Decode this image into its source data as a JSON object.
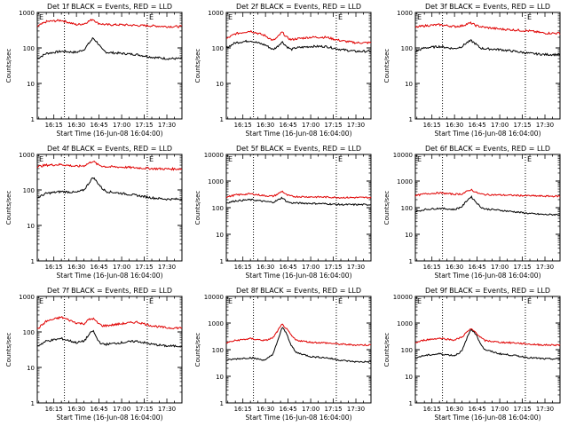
{
  "figure": {
    "y_tick_labels": [
      "1",
      "10",
      "100",
      "1000",
      "10000"
    ],
    "x_tick_labels": [
      "16:15",
      "16:30",
      "16:45",
      "17:00",
      "17:15",
      "17:30"
    ],
    "ylabel": "Counts/sec",
    "xlabel": "Start Time (16-Jun-08 16:04:00)",
    "corner_marks": [
      "E",
      "E"
    ]
  },
  "colors": {
    "events": "#000000",
    "lld": "#e00000",
    "axes": "#000000"
  },
  "chart_data": [
    {
      "type": "line",
      "title": "Det 1f BLACK = Events, RED = LLD",
      "xlabel": "Start Time (16-Jun-08 16:04:00)",
      "ylabel": "Counts/sec",
      "ylog": true,
      "ylim": [
        1,
        1000
      ],
      "x_tick_labels": [
        "16:15",
        "16:30",
        "16:45",
        "17:00",
        "17:15",
        "17:30"
      ],
      "y_tick_labels": [
        "1",
        "10",
        "100",
        "1000"
      ],
      "vlines": [
        "16:22",
        "17:17"
      ],
      "x": [
        "16:04",
        "16:10",
        "16:20",
        "16:30",
        "16:35",
        "16:38",
        "16:41",
        "16:44",
        "16:47",
        "16:50",
        "17:00",
        "17:10",
        "17:20",
        "17:30",
        "17:40"
      ],
      "series": [
        {
          "name": "Events",
          "values": [
            50,
            70,
            80,
            75,
            90,
            130,
            190,
            140,
            90,
            75,
            70,
            65,
            55,
            50,
            50
          ]
        },
        {
          "name": "LLD",
          "values": [
            400,
            550,
            600,
            450,
            480,
            560,
            650,
            500,
            470,
            450,
            450,
            430,
            420,
            400,
            400
          ]
        }
      ]
    },
    {
      "type": "line",
      "title": "Det 2f BLACK = Events, RED = LLD",
      "xlabel": "Start Time (16-Jun-08 16:04:00)",
      "ylabel": "Counts/sec",
      "ylog": true,
      "ylim": [
        1,
        1000
      ],
      "x_tick_labels": [
        "16:15",
        "16:30",
        "16:45",
        "17:00",
        "17:15",
        "17:30"
      ],
      "y_tick_labels": [
        "1",
        "10",
        "100",
        "1000"
      ],
      "vlines": [
        "16:22",
        "17:17"
      ],
      "x": [
        "16:04",
        "16:10",
        "16:20",
        "16:30",
        "16:35",
        "16:38",
        "16:41",
        "16:44",
        "16:47",
        "16:50",
        "17:00",
        "17:10",
        "17:20",
        "17:30",
        "17:40"
      ],
      "series": [
        {
          "name": "Events",
          "values": [
            100,
            140,
            160,
            120,
            90,
            110,
            150,
            110,
            90,
            100,
            110,
            110,
            90,
            80,
            80
          ]
        },
        {
          "name": "LLD",
          "values": [
            180,
            250,
            300,
            220,
            160,
            200,
            280,
            200,
            170,
            180,
            200,
            200,
            160,
            140,
            140
          ]
        }
      ]
    },
    {
      "type": "line",
      "title": "Det 3f BLACK = Events, RED = LLD",
      "xlabel": "Start Time (16-Jun-08 16:04:00)",
      "ylabel": "Counts/sec",
      "ylog": true,
      "ylim": [
        1,
        1000
      ],
      "x_tick_labels": [
        "16:15",
        "16:30",
        "16:45",
        "17:00",
        "17:15",
        "17:30"
      ],
      "y_tick_labels": [
        "1",
        "10",
        "100",
        "1000"
      ],
      "vlines": [
        "16:22",
        "17:17"
      ],
      "x": [
        "16:04",
        "16:10",
        "16:20",
        "16:30",
        "16:35",
        "16:38",
        "16:41",
        "16:44",
        "16:47",
        "16:50",
        "17:00",
        "17:10",
        "17:20",
        "17:30",
        "17:40"
      ],
      "series": [
        {
          "name": "Events",
          "values": [
            80,
            100,
            110,
            95,
            110,
            140,
            160,
            130,
            100,
            95,
            90,
            80,
            70,
            65,
            65
          ]
        },
        {
          "name": "LLD",
          "values": [
            380,
            420,
            450,
            400,
            420,
            470,
            500,
            430,
            400,
            380,
            340,
            320,
            300,
            260,
            260
          ]
        }
      ]
    },
    {
      "type": "line",
      "title": "Det 4f BLACK = Events, RED = LLD",
      "xlabel": "Start Time (16-Jun-08 16:04:00)",
      "ylabel": "Counts/sec",
      "ylog": true,
      "ylim": [
        1,
        1000
      ],
      "x_tick_labels": [
        "16:15",
        "16:30",
        "16:45",
        "17:00",
        "17:15",
        "17:30"
      ],
      "y_tick_labels": [
        "1",
        "10",
        "100",
        "1000"
      ],
      "vlines": [
        "16:22",
        "17:17"
      ],
      "x": [
        "16:04",
        "16:10",
        "16:20",
        "16:30",
        "16:35",
        "16:38",
        "16:41",
        "16:44",
        "16:47",
        "16:50",
        "17:00",
        "17:10",
        "17:20",
        "17:30",
        "17:40"
      ],
      "series": [
        {
          "name": "Events",
          "values": [
            60,
            80,
            90,
            85,
            100,
            150,
            230,
            160,
            110,
            90,
            80,
            70,
            60,
            55,
            55
          ]
        },
        {
          "name": "LLD",
          "values": [
            450,
            500,
            520,
            460,
            480,
            560,
            650,
            520,
            470,
            450,
            440,
            420,
            400,
            390,
            390
          ]
        }
      ]
    },
    {
      "type": "line",
      "title": "Det 5f BLACK = Events, RED = LLD",
      "xlabel": "Start Time (16-Jun-08 16:04:00)",
      "ylabel": "Counts/sec",
      "ylog": true,
      "ylim": [
        1,
        10000
      ],
      "x_tick_labels": [
        "16:15",
        "16:30",
        "16:45",
        "17:00",
        "17:15",
        "17:30"
      ],
      "y_tick_labels": [
        "1",
        "10",
        "100",
        "1000",
        "10000"
      ],
      "vlines": [
        "16:22",
        "17:17"
      ],
      "x": [
        "16:04",
        "16:10",
        "16:20",
        "16:30",
        "16:35",
        "16:38",
        "16:41",
        "16:44",
        "16:47",
        "16:50",
        "17:00",
        "17:10",
        "17:20",
        "17:30",
        "17:40"
      ],
      "series": [
        {
          "name": "Events",
          "values": [
            150,
            180,
            200,
            170,
            160,
            190,
            240,
            170,
            150,
            150,
            145,
            140,
            130,
            130,
            130
          ]
        },
        {
          "name": "LLD",
          "values": [
            250,
            300,
            330,
            280,
            270,
            320,
            420,
            300,
            270,
            260,
            255,
            250,
            240,
            240,
            240
          ]
        }
      ]
    },
    {
      "type": "line",
      "title": "Det 6f BLACK = Events, RED = LLD",
      "xlabel": "Start Time (16-Jun-08 16:04:00)",
      "ylabel": "Counts/sec",
      "ylog": true,
      "ylim": [
        1,
        10000
      ],
      "x_tick_labels": [
        "16:15",
        "16:30",
        "16:45",
        "17:00",
        "17:15",
        "17:30"
      ],
      "y_tick_labels": [
        "1",
        "10",
        "100",
        "1000",
        "10000"
      ],
      "vlines": [
        "16:22",
        "17:17"
      ],
      "x": [
        "16:04",
        "16:10",
        "16:20",
        "16:30",
        "16:35",
        "16:38",
        "16:41",
        "16:44",
        "16:47",
        "16:50",
        "17:00",
        "17:10",
        "17:20",
        "17:30",
        "17:40"
      ],
      "series": [
        {
          "name": "Events",
          "values": [
            70,
            85,
            95,
            85,
            110,
            180,
            260,
            170,
            110,
            90,
            80,
            70,
            60,
            55,
            55
          ]
        },
        {
          "name": "LLD",
          "values": [
            280,
            330,
            360,
            320,
            330,
            400,
            480,
            380,
            330,
            310,
            300,
            290,
            280,
            270,
            270
          ]
        }
      ]
    },
    {
      "type": "line",
      "title": "Det 7f BLACK = Events, RED = LLD",
      "xlabel": "Start Time (16-Jun-08 16:04:00)",
      "ylabel": "Counts/sec",
      "ylog": true,
      "ylim": [
        1,
        1000
      ],
      "x_tick_labels": [
        "16:15",
        "16:30",
        "16:45",
        "17:00",
        "17:15",
        "17:30"
      ],
      "y_tick_labels": [
        "1",
        "10",
        "100",
        "1000"
      ],
      "vlines": [
        "16:22",
        "17:17"
      ],
      "x": [
        "16:04",
        "16:10",
        "16:20",
        "16:30",
        "16:35",
        "16:38",
        "16:41",
        "16:44",
        "16:47",
        "16:50",
        "17:00",
        "17:10",
        "17:20",
        "17:30",
        "17:40"
      ],
      "series": [
        {
          "name": "Events",
          "values": [
            40,
            55,
            65,
            50,
            55,
            80,
            110,
            60,
            45,
            45,
            50,
            55,
            45,
            40,
            40
          ]
        },
        {
          "name": "LLD",
          "values": [
            120,
            200,
            260,
            180,
            170,
            220,
            240,
            180,
            150,
            150,
            170,
            190,
            150,
            130,
            130
          ]
        }
      ]
    },
    {
      "type": "line",
      "title": "Det 8f BLACK = Events, RED = LLD",
      "xlabel": "Start Time (16-Jun-08 16:04:00)",
      "ylabel": "Counts/sec",
      "ylog": true,
      "ylim": [
        1,
        10000
      ],
      "x_tick_labels": [
        "16:15",
        "16:30",
        "16:45",
        "17:00",
        "17:15",
        "17:30"
      ],
      "y_tick_labels": [
        "1",
        "10",
        "100",
        "1000",
        "10000"
      ],
      "vlines": [
        "16:22",
        "17:17"
      ],
      "x": [
        "16:04",
        "16:10",
        "16:20",
        "16:30",
        "16:35",
        "16:38",
        "16:41",
        "16:44",
        "16:47",
        "16:50",
        "17:00",
        "17:10",
        "17:20",
        "17:30",
        "17:40"
      ],
      "series": [
        {
          "name": "Events",
          "values": [
            40,
            45,
            50,
            40,
            70,
            200,
            700,
            400,
            150,
            80,
            55,
            50,
            40,
            35,
            35
          ]
        },
        {
          "name": "LLD",
          "values": [
            180,
            220,
            260,
            220,
            280,
            500,
            900,
            600,
            350,
            230,
            190,
            180,
            160,
            150,
            150
          ]
        }
      ]
    },
    {
      "type": "line",
      "title": "Det 9f BLACK = Events, RED = LLD",
      "xlabel": "Start Time (16-Jun-08 16:04:00)",
      "ylabel": "Counts/sec",
      "ylog": true,
      "ylim": [
        1,
        10000
      ],
      "x_tick_labels": [
        "16:15",
        "16:30",
        "16:45",
        "17:00",
        "17:15",
        "17:30"
      ],
      "y_tick_labels": [
        "1",
        "10",
        "100",
        "1000",
        "10000"
      ],
      "vlines": [
        "16:22",
        "17:17"
      ],
      "x": [
        "16:04",
        "16:10",
        "16:20",
        "16:30",
        "16:35",
        "16:38",
        "16:41",
        "16:44",
        "16:47",
        "16:50",
        "17:00",
        "17:10",
        "17:20",
        "17:30",
        "17:40"
      ],
      "series": [
        {
          "name": "Events",
          "values": [
            50,
            60,
            70,
            60,
            90,
            250,
            600,
            400,
            180,
            100,
            70,
            60,
            50,
            45,
            45
          ]
        },
        {
          "name": "LLD",
          "values": [
            180,
            230,
            270,
            230,
            300,
            450,
            600,
            450,
            300,
            220,
            190,
            180,
            160,
            150,
            150
          ]
        }
      ]
    }
  ]
}
